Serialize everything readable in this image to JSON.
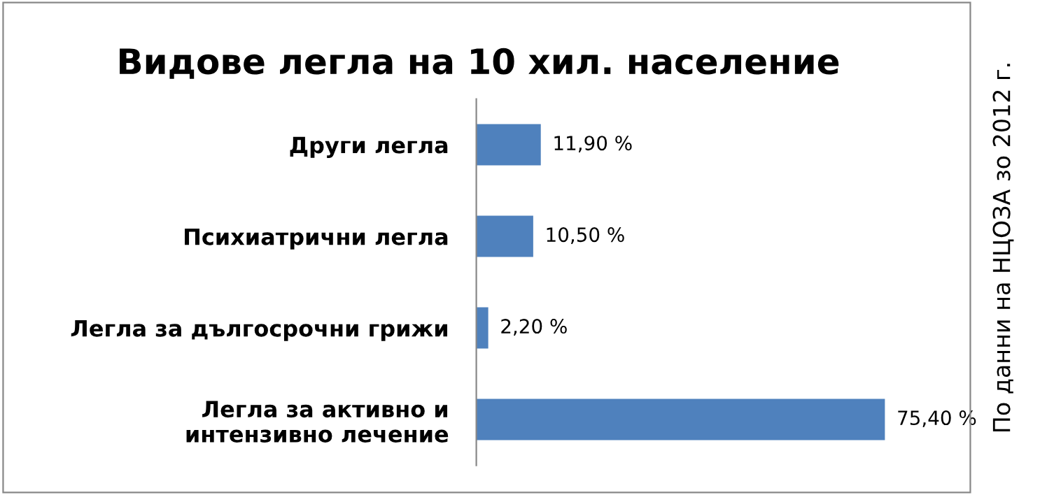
{
  "chart_data": {
    "type": "bar",
    "orientation": "horizontal",
    "title": "Видове легла на 10 хил. население",
    "categories": [
      "Други легла",
      "Психиатрични легла",
      "Легла за дългосрочни грижи",
      "Легла за активно и\nинтензивно лечение"
    ],
    "values": [
      11.9,
      10.5,
      2.2,
      75.4
    ],
    "value_labels": [
      "11,90 %",
      "10,50 %",
      "2,20 %",
      "75,40 %"
    ],
    "color": "#4f81bd",
    "tick_labels": "y",
    "annotations": [
      "По данни на НЦОЗА зо 2012 г."
    ]
  }
}
